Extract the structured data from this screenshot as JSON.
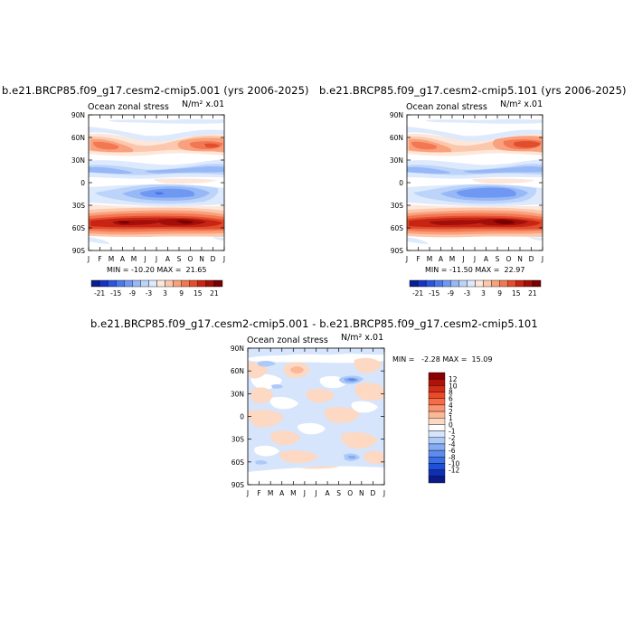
{
  "months": [
    "J",
    "F",
    "M",
    "A",
    "M",
    "J",
    "J",
    "A",
    "S",
    "O",
    "N",
    "D",
    "J"
  ],
  "lat_ticks": [
    "90N",
    "60N",
    "30N",
    "0",
    "30S",
    "60S",
    "90S"
  ],
  "top_colorbar_labels": [
    "-21",
    "-15",
    "-9",
    "-3",
    "3",
    "9",
    "15",
    "21"
  ],
  "top_colorbar_colors": [
    "#0a1f8f",
    "#1733c4",
    "#2a55dc",
    "#4878ec",
    "#6e98f2",
    "#97b8f6",
    "#bcd3fa",
    "#dde9fc",
    "#fde7db",
    "#fcc8ad",
    "#f9a07c",
    "#f27752",
    "#e24d2e",
    "#c82414",
    "#a00f0a",
    "#790000"
  ],
  "diff_colorbar_labels": [
    "12",
    "10",
    "8",
    "6",
    "4",
    "2",
    "1",
    "0",
    "-1",
    "-2",
    "-4",
    "-6",
    "-8",
    "-10",
    "-12"
  ],
  "diff_colorbar_colors": [
    "#8a0000",
    "#b01208",
    "#d32b15",
    "#ea4a28",
    "#f76c46",
    "#fb9470",
    "#fcb796",
    "#fdd8c2",
    "#ffffff",
    "#d6e5fb",
    "#adc9f7",
    "#85abf3",
    "#5d8cee",
    "#386ee8",
    "#1f4fd9",
    "#0f2fb3",
    "#0a1a86"
  ],
  "panels": [
    {
      "title": "b.e21.BRCP85.f09_g17.cesm2-cmip5.001 (yrs 2006-2025)",
      "left_label": "Ocean zonal stress",
      "right_label": "N/m² x.01",
      "minmax": "MIN = -10.20 MAX =  21.65"
    },
    {
      "title": "b.e21.BRCP85.f09_g17.cesm2-cmip5.101 (yrs 2006-2025)",
      "left_label": "Ocean zonal stress",
      "right_label": "N/m² x.01",
      "minmax": "MIN = -11.50 MAX =  22.97"
    },
    {
      "title": "b.e21.BRCP85.f09_g17.cesm2-cmip5.001 - b.e21.BRCP85.f09_g17.cesm2-cmip5.101",
      "left_label": "Ocean zonal stress",
      "right_label": "N/m² x.01",
      "minmax": "MIN =   -2.28 MAX =  15.09"
    }
  ],
  "chart_data": [
    {
      "type": "heatmap",
      "title": "b.e21.BRCP85.f09_g17.cesm2-cmip5.001 (yrs 2006-2025)",
      "subtitle_left": "Ocean zonal stress",
      "subtitle_right": "N/m² x.01",
      "x": [
        "J",
        "F",
        "M",
        "A",
        "M",
        "J",
        "J",
        "A",
        "S",
        "O",
        "N",
        "D",
        "J"
      ],
      "y": [
        "90N",
        "60N",
        "30N",
        "0",
        "30S",
        "60S",
        "90S"
      ],
      "min": -10.2,
      "max": 21.65,
      "levels": [
        -21,
        -18,
        -15,
        -12,
        -9,
        -6,
        -3,
        0,
        3,
        6,
        9,
        12,
        15,
        18,
        21
      ]
    },
    {
      "type": "heatmap",
      "title": "b.e21.BRCP85.f09_g17.cesm2-cmip5.101 (yrs 2006-2025)",
      "subtitle_left": "Ocean zonal stress",
      "subtitle_right": "N/m² x.01",
      "x": [
        "J",
        "F",
        "M",
        "A",
        "M",
        "J",
        "J",
        "A",
        "S",
        "O",
        "N",
        "D",
        "J"
      ],
      "y": [
        "90N",
        "60N",
        "30N",
        "0",
        "30S",
        "60S",
        "90S"
      ],
      "min": -11.5,
      "max": 22.97,
      "levels": [
        -21,
        -18,
        -15,
        -12,
        -9,
        -6,
        -3,
        0,
        3,
        6,
        9,
        12,
        15,
        18,
        21
      ]
    },
    {
      "type": "heatmap",
      "title": "b.e21.BRCP85.f09_g17.cesm2-cmip5.001 - b.e21.BRCP85.f09_g17.cesm2-cmip5.101",
      "subtitle_left": "Ocean zonal stress",
      "subtitle_right": "N/m² x.01",
      "x": [
        "J",
        "F",
        "M",
        "A",
        "M",
        "J",
        "J",
        "A",
        "S",
        "O",
        "N",
        "D",
        "J"
      ],
      "y": [
        "90N",
        "60N",
        "30N",
        "0",
        "30S",
        "60S",
        "90S"
      ],
      "min": -2.28,
      "max": 15.09,
      "levels": [
        12,
        10,
        8,
        6,
        4,
        2,
        1,
        0,
        -1,
        -2,
        -4,
        -6,
        -8,
        -10,
        -12
      ]
    }
  ]
}
